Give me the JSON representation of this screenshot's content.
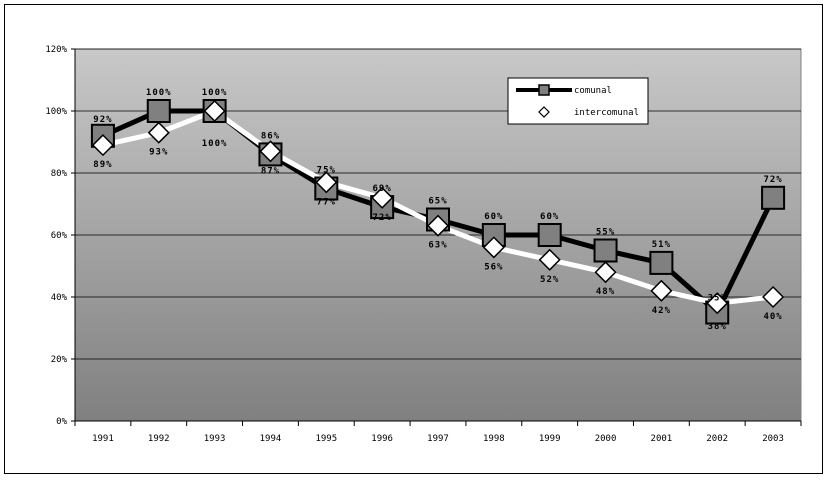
{
  "chart_data": {
    "type": "line",
    "title": "",
    "xlabel": "",
    "ylabel": "",
    "categories": [
      "1991",
      "1992",
      "1993",
      "1994",
      "1995",
      "1996",
      "1997",
      "1998",
      "1999",
      "2000",
      "2001",
      "2002",
      "2003"
    ],
    "ylim": [
      0,
      120
    ],
    "yticks": [
      0,
      20,
      40,
      60,
      80,
      100,
      120
    ],
    "ytick_labels": [
      "0%",
      "20%",
      "40%",
      "60%",
      "80%",
      "100%",
      "120%"
    ],
    "grid": true,
    "legend": "top-right",
    "series": [
      {
        "name": "comunal",
        "values": [
          92,
          100,
          100,
          86,
          75,
          69,
          65,
          60,
          60,
          55,
          51,
          35,
          72
        ],
        "labels": [
          "92%",
          "100%",
          "100%",
          "86%",
          "75%",
          "69%",
          "65%",
          "60%",
          "60%",
          "55%",
          "51%",
          "35%",
          "72%"
        ],
        "line_color": "#000000",
        "marker": "square",
        "marker_color": "#808080"
      },
      {
        "name": "intercomunal",
        "values": [
          89,
          93,
          100,
          87,
          77,
          72,
          63,
          56,
          52,
          48,
          42,
          38,
          40
        ],
        "labels": [
          "89%",
          "93%",
          "100%",
          "87%",
          "77%",
          "72%",
          "63%",
          "56%",
          "52%",
          "48%",
          "42%",
          "38%",
          "40%"
        ],
        "line_color": "#ffffff",
        "marker": "diamond",
        "marker_color": "#ffffff"
      }
    ],
    "plot_background": [
      "#c8c8c8",
      "#808080"
    ]
  }
}
